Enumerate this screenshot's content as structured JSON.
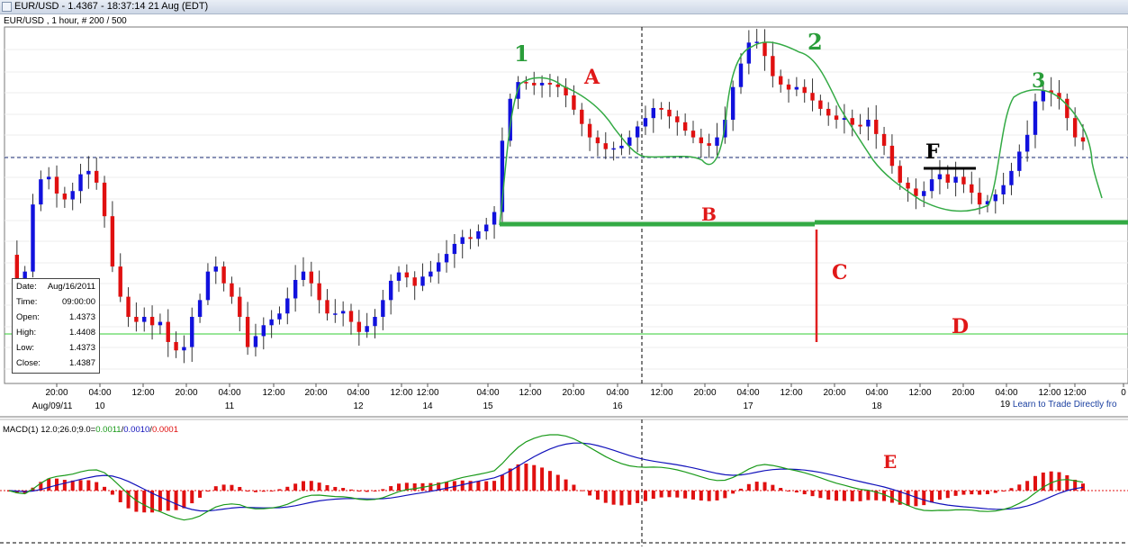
{
  "window": {
    "title": "EUR/USD - 1.4367 - 18:37:14  21 Aug (EDT)",
    "subtitle": "EUR/USD , 1 hour, # 200 / 500"
  },
  "info_box": {
    "rows": [
      {
        "label": "Date:",
        "value": "Aug/16/2011"
      },
      {
        "label": "Time:",
        "value": "09:00:00"
      },
      {
        "label": "Open:",
        "value": "1.4373"
      },
      {
        "label": "High:",
        "value": "1.4408"
      },
      {
        "label": "Low:",
        "value": "1.4373"
      },
      {
        "label": "Close:",
        "value": "1.4387"
      }
    ]
  },
  "footer": {
    "prefix": "19 ",
    "link_text": "Learn to Trade Directly fro"
  },
  "chart_data": [
    {
      "type": "candlestick",
      "title": "",
      "x_time_labels": [
        "20:00",
        "04:00",
        "12:00",
        "20:00",
        "04:00",
        "12:00",
        "20:00",
        "04:00",
        "12:00",
        "12:00",
        "04:00",
        "12:00",
        "20:00",
        "04:00",
        "12:00",
        "20:00",
        "04:00",
        "12:00",
        "20:00",
        "04:00",
        "12:00",
        "20:00",
        "04:00",
        "12:00",
        "12:00",
        "0"
      ],
      "x_date_labels": [
        "Aug/09/11",
        "10",
        "11",
        "12",
        "14",
        "15",
        "16",
        "17",
        "18",
        "19"
      ],
      "colors": {
        "up": "#1111dd",
        "down": "#e01010"
      },
      "gridlines": true,
      "close_path": [
        1.4282,
        1.4248,
        1.4262,
        1.4342,
        1.4372,
        1.4375,
        1.4355,
        1.4348,
        1.4358,
        1.4378,
        1.4382,
        1.4368,
        1.4328,
        1.4268,
        1.4232,
        1.4208,
        1.4202,
        1.4208,
        1.4198,
        1.4202,
        1.4178,
        1.4168,
        1.4172,
        1.4208,
        1.4228,
        1.4262,
        1.4268,
        1.4248,
        1.4232,
        1.4208,
        1.4172,
        1.4185,
        1.4198,
        1.4205,
        1.4212,
        1.423,
        1.4252,
        1.4262,
        1.4248,
        1.4228,
        1.4212,
        1.4212,
        1.4215,
        1.4202,
        1.419,
        1.4197,
        1.4208,
        1.4228,
        1.4251,
        1.4261,
        1.4255,
        1.4245,
        1.4256,
        1.4262,
        1.4273,
        1.4283,
        1.4295,
        1.4303,
        1.4301,
        1.431,
        1.4318,
        1.4333,
        1.4418,
        1.4468,
        1.4488,
        1.4487,
        1.4484,
        1.4487,
        1.4485,
        1.4482,
        1.4472,
        1.4455,
        1.4438,
        1.4422,
        1.4415,
        1.4408,
        1.4409,
        1.4412,
        1.4422,
        1.4435,
        1.4445,
        1.4457,
        1.4455,
        1.4447,
        1.444,
        1.443,
        1.4422,
        1.4415,
        1.4412,
        1.4422,
        1.4443,
        1.4482,
        1.451,
        1.4535,
        1.4536,
        1.4519,
        1.4495,
        1.4485,
        1.4479,
        1.4482,
        1.4475,
        1.4466,
        1.4456,
        1.4448,
        1.4443,
        1.4445,
        1.4437,
        1.4435,
        1.4443,
        1.4426,
        1.4412,
        1.4388,
        1.4368,
        1.4361,
        1.4352,
        1.4358,
        1.4372,
        1.4378,
        1.4368,
        1.4375,
        1.4366,
        1.4356,
        1.4342,
        1.4346,
        1.4354,
        1.4365,
        1.4382,
        1.4405,
        1.4425,
        1.4465,
        1.4478,
        1.4475,
        1.4468,
        1.4445,
        1.4422,
        1.4417
      ]
    },
    {
      "type": "line_histogram",
      "title": "MACD(1) 12.0;26.0;9.0=0.0011/0.0010/0.0001",
      "title_parts": [
        "MACD(1) 12.0;26.0;9.0=",
        "0.0011",
        "/",
        "0.0010",
        "/",
        "0.0001"
      ],
      "colors": {
        "macd": "#1a9a1a",
        "signal": "#1212bb",
        "histogram": "#e01010"
      }
    }
  ],
  "annotations": {
    "labels": [
      {
        "text": "1",
        "color": "#2a9d3a"
      },
      {
        "text": "2",
        "color": "#2a9d3a"
      },
      {
        "text": "3",
        "color": "#2a9d3a"
      },
      {
        "text": "A",
        "color": "#e01818"
      },
      {
        "text": "B",
        "color": "#e01818"
      },
      {
        "text": "C",
        "color": "#e01818"
      },
      {
        "text": "D",
        "color": "#e01818"
      },
      {
        "text": "E",
        "color": "#e01818"
      },
      {
        "text": "F",
        "color": "#000000"
      }
    ]
  }
}
